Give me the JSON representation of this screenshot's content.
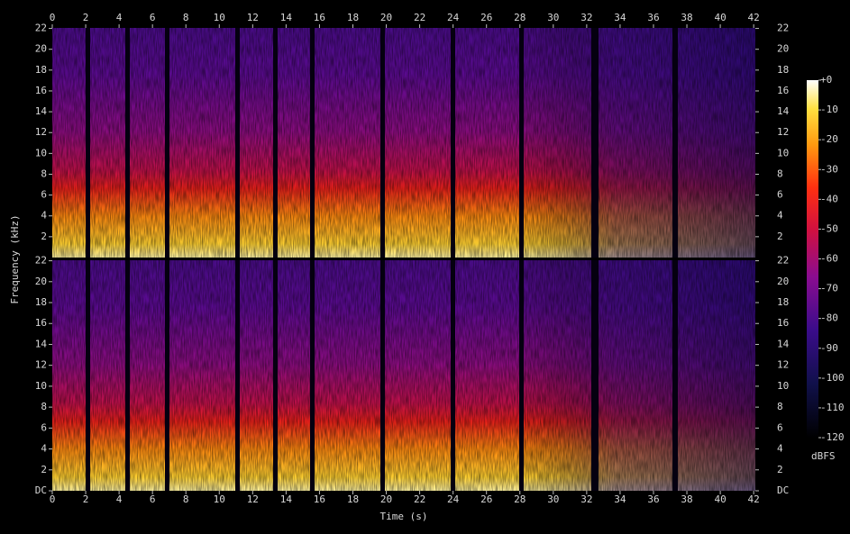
{
  "chart_data": {
    "type": "spectrogram",
    "xlabel": "Time (s)",
    "ylabel": "Frequency (kHz)",
    "xlim": [
      0,
      42.1
    ],
    "xticks": [
      0,
      2,
      4,
      6,
      8,
      10,
      12,
      14,
      16,
      18,
      20,
      22,
      24,
      26,
      28,
      30,
      32,
      34,
      36,
      38,
      40,
      42
    ],
    "ylim": [
      0,
      22.05
    ],
    "yticks": [
      {
        "value": 0,
        "label": "DC"
      },
      2,
      4,
      6,
      8,
      10,
      12,
      14,
      16,
      18,
      20,
      22
    ],
    "colorbar": {
      "label": "dBFS",
      "lim": [
        -120,
        0
      ],
      "ticks": [
        {
          "value": 0,
          "label": "+0"
        },
        -10,
        -20,
        -30,
        -40,
        -50,
        -60,
        -70,
        -80,
        -90,
        -100,
        -110,
        -120
      ]
    }
  }
}
